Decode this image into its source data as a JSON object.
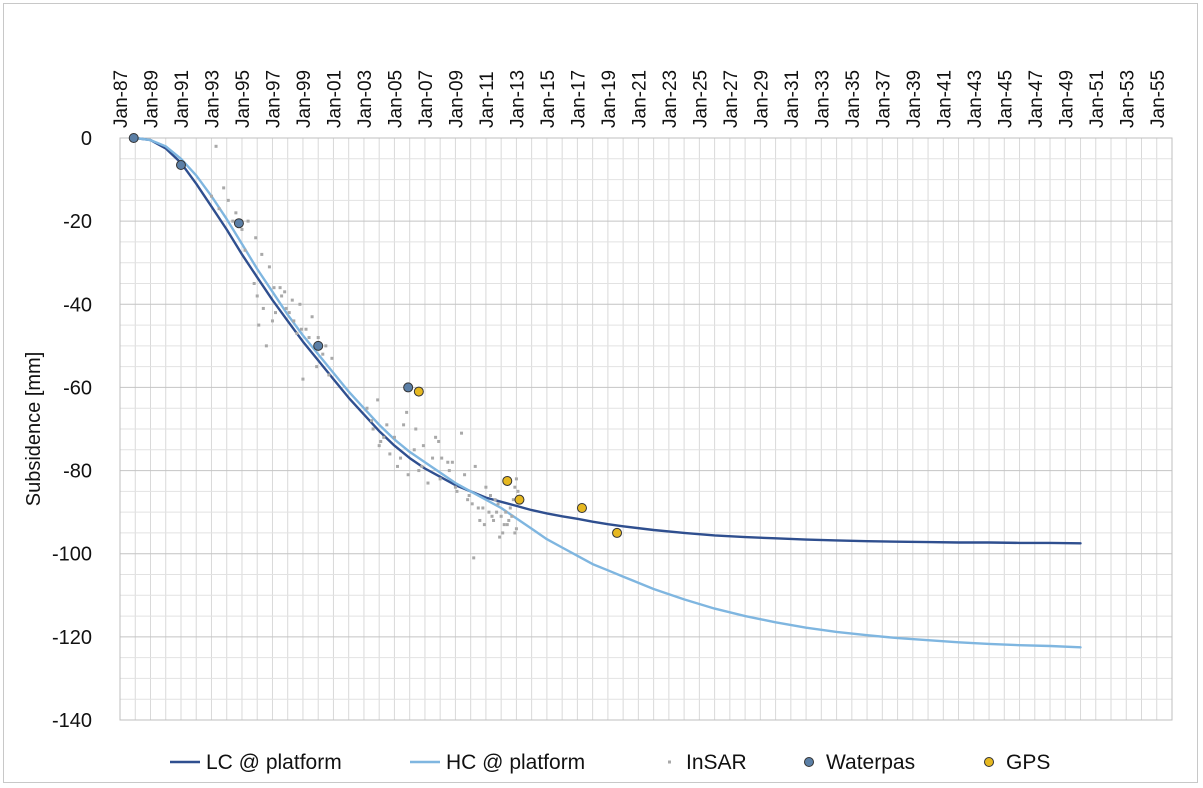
{
  "chart_data": {
    "type": "line",
    "ylabel": "Subsidence [mm]",
    "ylim": [
      -140,
      0
    ],
    "yticks": [
      0,
      -20,
      -40,
      -60,
      -80,
      -100,
      -120,
      -140
    ],
    "xlim": [
      1987,
      2056
    ],
    "xtick_labels": [
      "Jan-87",
      "Jan-89",
      "Jan-91",
      "Jan-93",
      "Jan-95",
      "Jan-97",
      "Jan-99",
      "Jan-01",
      "Jan-03",
      "Jan-05",
      "Jan-07",
      "Jan-09",
      "Jan-11",
      "Jan-13",
      "Jan-15",
      "Jan-17",
      "Jan-19",
      "Jan-21",
      "Jan-23",
      "Jan-25",
      "Jan-27",
      "Jan-29",
      "Jan-31",
      "Jan-33",
      "Jan-35",
      "Jan-37",
      "Jan-39",
      "Jan-41",
      "Jan-43",
      "Jan-45",
      "Jan-47",
      "Jan-49",
      "Jan-51",
      "Jan-53",
      "Jan-55"
    ],
    "xtick_values": [
      1987,
      1989,
      1991,
      1993,
      1995,
      1997,
      1999,
      2001,
      2003,
      2005,
      2007,
      2009,
      2011,
      2013,
      2015,
      2017,
      2019,
      2021,
      2023,
      2025,
      2027,
      2029,
      2031,
      2033,
      2035,
      2037,
      2039,
      2041,
      2043,
      2045,
      2047,
      2049,
      2051,
      2053,
      2055
    ],
    "grid": true,
    "legend_position": "bottom",
    "series": [
      {
        "name": "LC @ platform",
        "kind": "line",
        "color": "#2f4f8f",
        "x": [
          1988,
          1989,
          1990,
          1991,
          1992,
          1993,
          1994,
          1995,
          1996,
          1997,
          1998,
          1999,
          2000,
          2001,
          2002,
          2003,
          2004,
          2005,
          2006,
          2007,
          2008,
          2009,
          2010,
          2011,
          2012,
          2013,
          2014,
          2015,
          2016,
          2017,
          2018,
          2019,
          2020,
          2022,
          2024,
          2026,
          2028,
          2030,
          2032,
          2034,
          2036,
          2038,
          2040,
          2042,
          2044,
          2046,
          2048,
          2050
        ],
        "y": [
          0,
          -0.5,
          -2.5,
          -6,
          -11,
          -16.5,
          -22,
          -28,
          -33.5,
          -39,
          -44,
          -49,
          -53.5,
          -58,
          -62.5,
          -66.5,
          -70.5,
          -74,
          -77,
          -79.5,
          -81.5,
          -83.5,
          -85,
          -86.5,
          -87.5,
          -88.5,
          -89.5,
          -90.3,
          -91,
          -91.6,
          -92.3,
          -92.9,
          -93.4,
          -94.3,
          -95,
          -95.6,
          -96,
          -96.3,
          -96.6,
          -96.8,
          -97,
          -97.1,
          -97.2,
          -97.3,
          -97.3,
          -97.4,
          -97.4,
          -97.5
        ]
      },
      {
        "name": "HC @ platform",
        "kind": "line",
        "color": "#7fb6e0",
        "x": [
          1988,
          1989,
          1990,
          1991,
          1992,
          1993,
          1994,
          1995,
          1996,
          1997,
          1998,
          1999,
          2000,
          2001,
          2002,
          2003,
          2004,
          2005,
          2006,
          2007,
          2008,
          2009,
          2010,
          2011,
          2012,
          2013,
          2014,
          2015,
          2016,
          2017,
          2018,
          2019,
          2020,
          2022,
          2024,
          2026,
          2028,
          2030,
          2032,
          2034,
          2036,
          2038,
          2040,
          2042,
          2044,
          2046,
          2048,
          2050
        ],
        "y": [
          0,
          -0.5,
          -2,
          -5,
          -9,
          -14,
          -19.5,
          -25.5,
          -31.5,
          -37,
          -42.5,
          -47.5,
          -52,
          -56.5,
          -61,
          -65,
          -69,
          -72.5,
          -75.5,
          -78,
          -80.5,
          -83,
          -85,
          -87,
          -89,
          -91.5,
          -94,
          -96.5,
          -98.5,
          -100.5,
          -102.5,
          -104,
          -105.5,
          -108.5,
          -111,
          -113.2,
          -115,
          -116.5,
          -117.8,
          -118.8,
          -119.6,
          -120.3,
          -120.8,
          -121.3,
          -121.7,
          -122,
          -122.2,
          -122.5
        ]
      },
      {
        "name": "InSAR",
        "kind": "scatter",
        "color": "#a9a9a9",
        "x": [
          1993.3,
          1993.8,
          1994.1,
          1994.6,
          1995.0,
          1995.4,
          1995.9,
          1996.3,
          1996.8,
          1997.1,
          1997.6,
          1997.9,
          1998.4,
          1998.8,
          1999.2,
          1999.6,
          2000.0,
          2000.5,
          2000.9,
          1995.8,
          1996.1,
          1996.6,
          1997.2,
          1997.8,
          1998.3,
          1998.9,
          1999.4,
          1999.9,
          2000.3,
          2000.7,
          1996.0,
          1996.4,
          1997.0,
          1997.5,
          1998.1,
          1998.6,
          1999.0,
          1993.0,
          1993.5,
          1994.4,
          1995.2,
          2003.2,
          2003.6,
          2004.0,
          2004.5,
          2005.0,
          2005.4,
          2005.9,
          2006.3,
          2006.8,
          2007.2,
          2007.7,
          2008.1,
          2008.6,
          2009.0,
          2009.4,
          2009.9,
          2010.3,
          2010.8,
          2011.2,
          2011.6,
          2012.0,
          2012.4,
          2012.9,
          2003.5,
          2004.1,
          2004.7,
          2005.2,
          2005.8,
          2006.4,
          2006.9,
          2007.5,
          2008.0,
          2008.5,
          2009.1,
          2009.6,
          2010.1,
          2010.6,
          2011.0,
          2011.4,
          2011.8,
          2012.2,
          2012.6,
          2013.0,
          2013.1,
          2012.8,
          2012.5,
          2012.1,
          2011.7,
          2011.3,
          2010.9,
          2010.5,
          2012.3,
          2012.7,
          2011.9,
          2011.5,
          2013.0,
          2012.9,
          2010.2,
          2009.8,
          2008.8,
          2007.9,
          2006.6,
          2005.6,
          2004.3,
          2003.9
        ],
        "y": [
          -2,
          -12,
          -15,
          -18,
          -22,
          -20,
          -24,
          -28,
          -31,
          -36,
          -38,
          -41,
          -44,
          -40,
          -46,
          -43,
          -48,
          -50,
          -53,
          -35,
          -45,
          -50,
          -42,
          -37,
          -39,
          -46,
          -48,
          -55,
          -52,
          -57,
          -38,
          -41,
          -44,
          -36,
          -42,
          -47,
          -58,
          -14,
          -17,
          -20,
          -27,
          -65,
          -70,
          -74,
          -69,
          -72,
          -77,
          -81,
          -75,
          -79,
          -83,
          -72,
          -77,
          -80,
          -84,
          -71,
          -86,
          -79,
          -89,
          -90,
          -87,
          -91,
          -93,
          -95,
          -68,
          -73,
          -76,
          -79,
          -66,
          -70,
          -74,
          -77,
          -82,
          -78,
          -85,
          -81,
          -88,
          -92,
          -84,
          -91,
          -88,
          -93,
          -89,
          -94,
          -85,
          -87,
          -92,
          -95,
          -90,
          -86,
          -93,
          -89,
          -90,
          -91,
          -96,
          -92,
          -82,
          -84,
          -101,
          -87,
          -78,
          -73,
          -80,
          -69,
          -72,
          -63
        ],
        "marker_size": 2
      },
      {
        "name": "Waterpas",
        "kind": "scatter",
        "color": "#5b7fa6",
        "x": [
          1987.9,
          1991.0,
          1994.8,
          2000.0,
          2005.9
        ],
        "y": [
          0,
          -6.5,
          -20.5,
          -50,
          -60
        ]
      },
      {
        "name": "GPS",
        "kind": "scatter",
        "color": "#e6b820",
        "x": [
          2006.6,
          2012.4,
          2013.2,
          2017.3,
          2019.6
        ],
        "y": [
          -61,
          -82.5,
          -87,
          -89,
          -95
        ]
      }
    ]
  },
  "legend": {
    "items": [
      {
        "label": "LC @ platform",
        "kind": "line",
        "color": "#2f4f8f"
      },
      {
        "label": "HC @ platform",
        "kind": "line",
        "color": "#7fb6e0"
      },
      {
        "label": "InSAR",
        "kind": "dot",
        "color": "#a9a9a9"
      },
      {
        "label": "Waterpas",
        "kind": "marker",
        "color": "#5b7fa6"
      },
      {
        "label": "GPS",
        "kind": "marker",
        "color": "#e6b820"
      }
    ]
  }
}
